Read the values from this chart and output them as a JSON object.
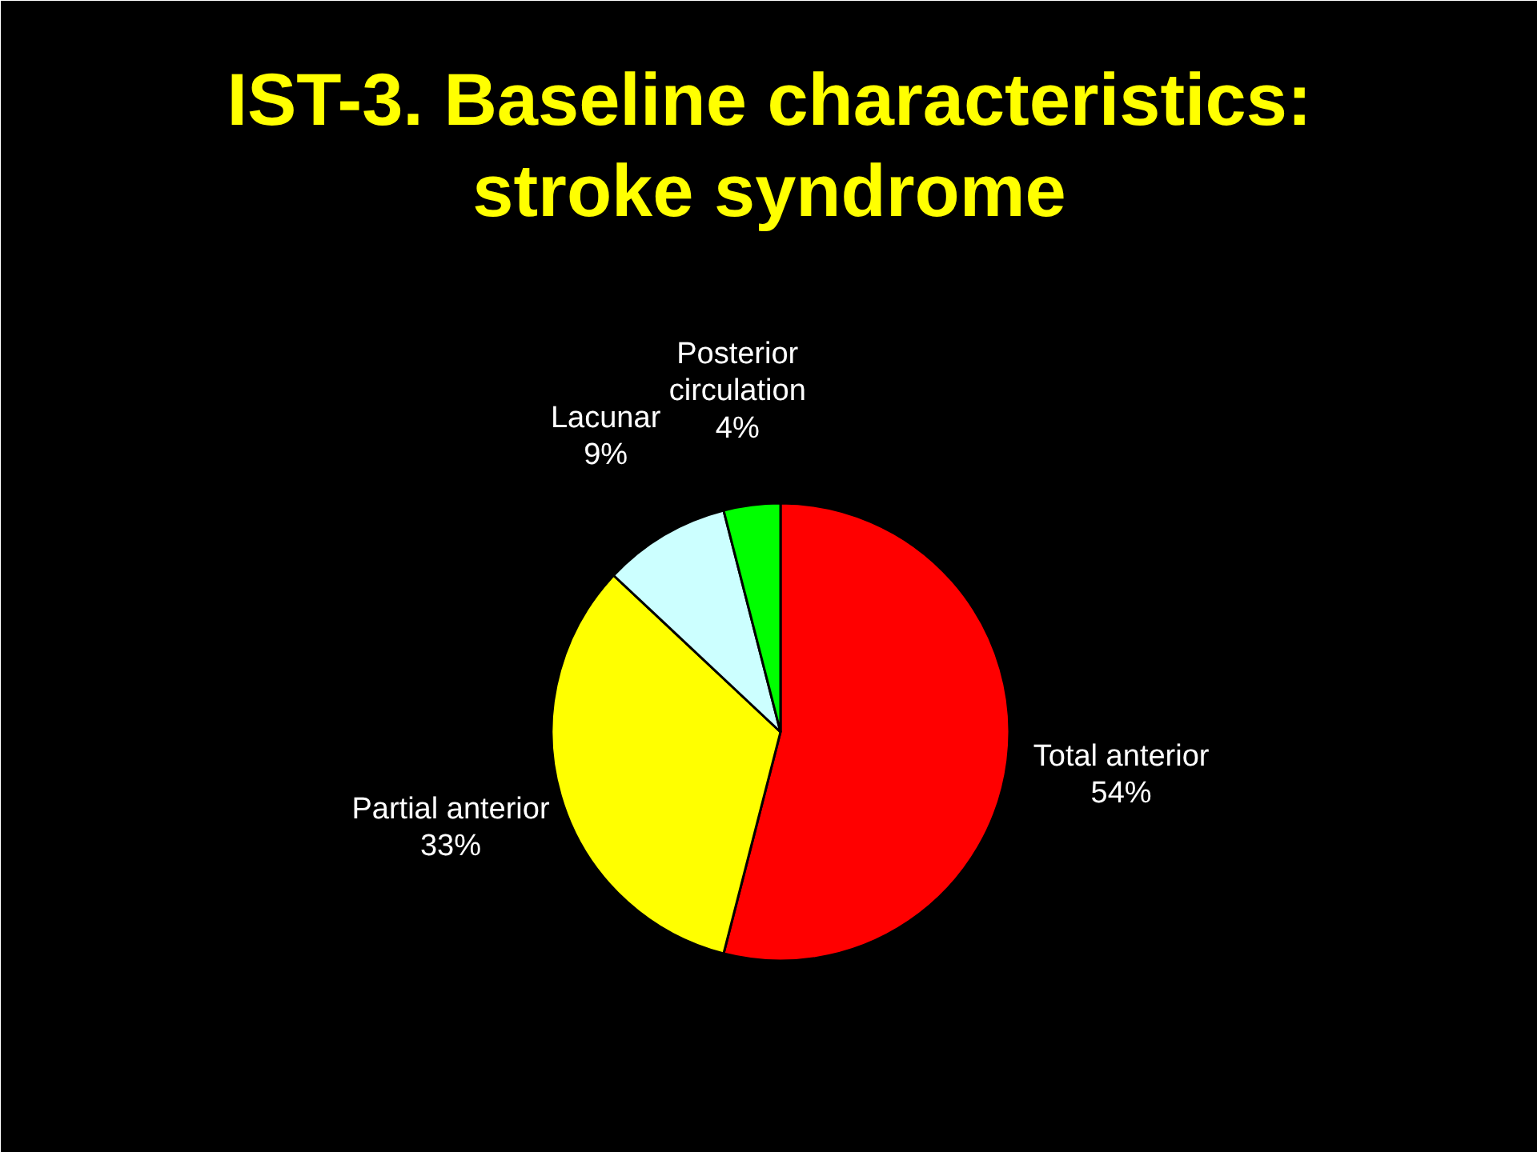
{
  "chart_data": {
    "type": "pie",
    "title": "IST-3. Baseline characteristics: stroke syndrome",
    "categories": [
      "Total anterior",
      "Partial anterior",
      "Lacunar",
      "Posterior circulation"
    ],
    "values": [
      54,
      33,
      9,
      4
    ],
    "colors": [
      "#ff0000",
      "#ffff00",
      "#ccffff",
      "#00ff00"
    ],
    "value_labels": [
      "54%",
      "33%",
      "9%",
      "4%"
    ]
  }
}
